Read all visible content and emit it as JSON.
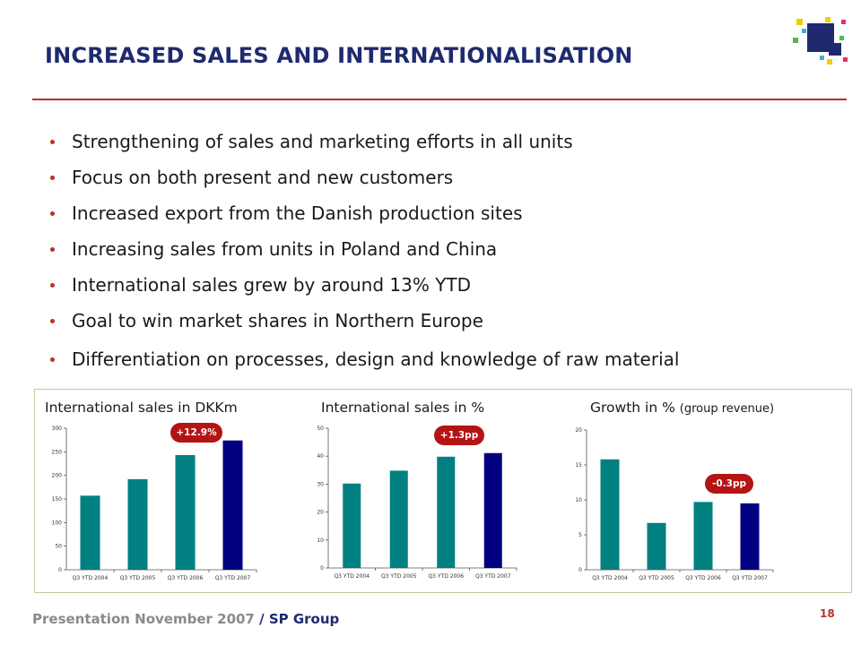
{
  "slide": {
    "title": "INCREASED SALES AND INTERNATIONALISATION",
    "bullets": [
      "Strengthening of sales and marketing efforts in all units",
      "Focus on both present and new customers",
      "Increased export from the Danish production sites",
      "Increasing sales from units in Poland and China",
      "International sales grew by around 13% YTD",
      "Goal to win market shares in Northern Europe",
      "Differentiation on processes, design and knowledge of raw material"
    ],
    "accent_color": "#b8312a",
    "title_color": "#1f2a6e"
  },
  "footer": {
    "presentation": "Presentation November 2007",
    "separator": " / ",
    "company": "SP Group",
    "page": "18"
  },
  "logo": {
    "icon": "sp-group-logo-icon"
  },
  "chart_data": [
    {
      "type": "bar",
      "title": "International sales in DKKm",
      "categories": [
        "Q3 YTD 2004",
        "Q3 YTD 2005",
        "Q3 YTD 2006",
        "Q3 YTD 2007"
      ],
      "values": [
        157,
        192,
        243,
        274
      ],
      "ylim": [
        0,
        300
      ],
      "yticks": [
        0,
        50,
        100,
        150,
        200,
        250,
        300
      ],
      "colors": [
        "#008080",
        "#008080",
        "#008080",
        "#000080"
      ],
      "annotation": "+12.9%"
    },
    {
      "type": "bar",
      "title": "International sales in %",
      "categories": [
        "Q3 YTD 2004",
        "Q3 YTD 2005",
        "Q3 YTD 2006",
        "Q3 YTD 2007"
      ],
      "values": [
        30.2,
        34.8,
        39.8,
        41.1
      ],
      "ylim": [
        0,
        50
      ],
      "yticks": [
        0,
        10,
        20,
        30,
        40,
        50
      ],
      "colors": [
        "#008080",
        "#008080",
        "#008080",
        "#000080"
      ],
      "annotation": "+1.3pp"
    },
    {
      "type": "bar",
      "title": "Growth in %",
      "subtitle": "(group revenue)",
      "categories": [
        "Q3 YTD 2004",
        "Q3 YTD 2005",
        "Q3 YTD 2006",
        "Q3 YTD 2007"
      ],
      "values": [
        15.8,
        6.7,
        9.7,
        9.5
      ],
      "ylim": [
        0,
        20
      ],
      "yticks": [
        0,
        5,
        10,
        15,
        20
      ],
      "colors": [
        "#008080",
        "#008080",
        "#008080",
        "#000080"
      ],
      "annotation": "-0.3pp"
    }
  ]
}
